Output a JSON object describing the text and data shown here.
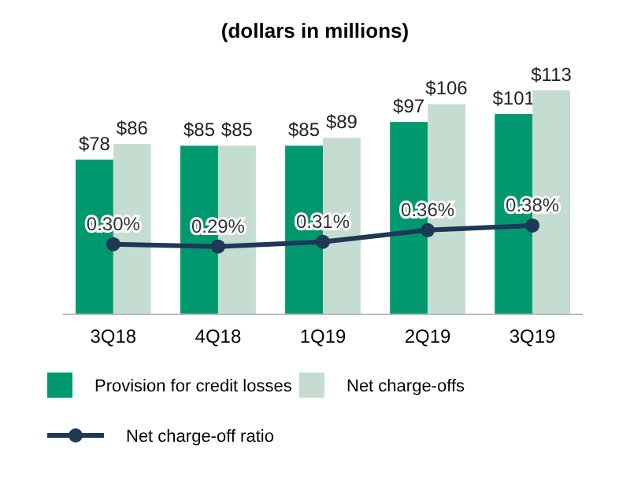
{
  "chart_data": {
    "type": "bar",
    "title": "(dollars in millions)",
    "categories": [
      "3Q18",
      "4Q18",
      "1Q19",
      "2Q19",
      "3Q19"
    ],
    "legend": "bottom",
    "marker": "circle",
    "line_style": "solid",
    "grid": false,
    "series": [
      {
        "name": "Provision for credit losses",
        "color": "#00996f",
        "values": [
          78,
          85,
          85,
          97,
          101
        ],
        "value_labels": [
          "$78",
          "$85",
          "$85",
          "$97",
          "$101"
        ]
      },
      {
        "name": "Net charge-offs",
        "color": "#c4ddd0",
        "values": [
          86,
          85,
          89,
          106,
          113
        ],
        "value_labels": [
          "$86",
          "$85",
          "$89",
          "$106",
          "$113"
        ]
      },
      {
        "name": "Net charge-off ratio",
        "type": "line",
        "axis": "y2",
        "color": "#1e3856",
        "values": [
          0.3,
          0.29,
          0.31,
          0.36,
          0.38
        ],
        "value_labels": [
          "0.30%",
          "0.29%",
          "0.31%",
          "0.36%",
          "0.38%"
        ]
      }
    ]
  }
}
